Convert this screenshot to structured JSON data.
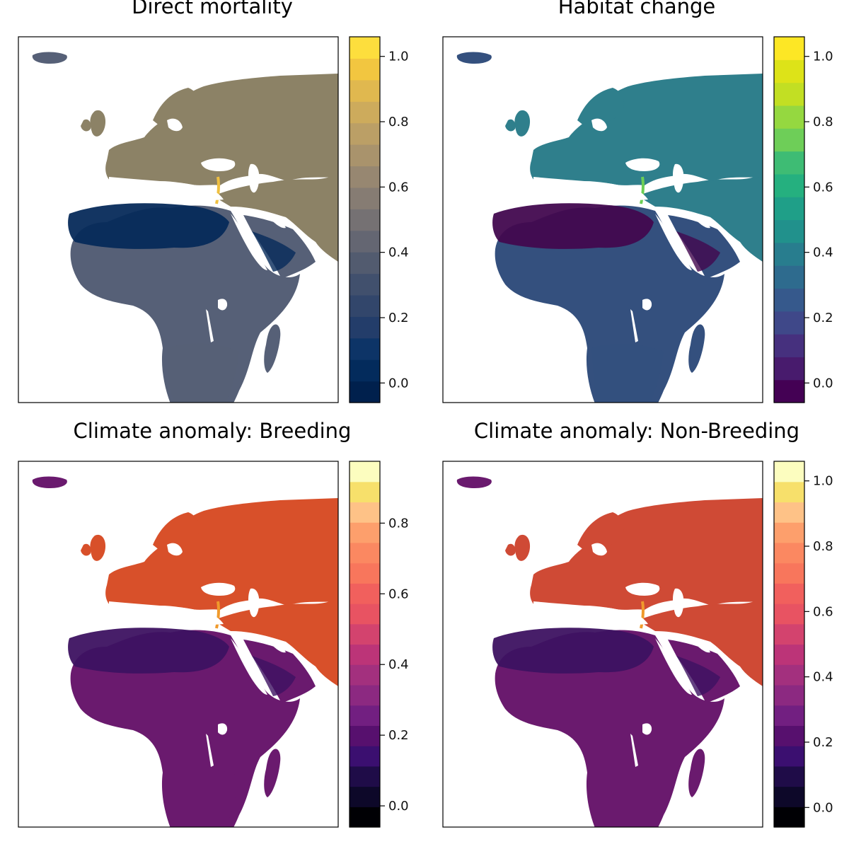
{
  "panels": [
    {
      "title": "Direct mortality",
      "palette": [
        "#00204d",
        "#032b5c",
        "#0d3467",
        "#233d6a",
        "#32466b",
        "#41506d",
        "#525b6f",
        "#646672",
        "#757173",
        "#867c73",
        "#978771",
        "#a9936c",
        "#bb9f66",
        "#cdab5c",
        "#e0b84f",
        "#f2c640",
        "#fdde3d"
      ],
      "ticks": [
        "0.0",
        "0.2",
        "0.4",
        "0.6",
        "0.8",
        "1.0"
      ],
      "colors": {
        "ocean": "#ffffff",
        "land": "#566077",
        "desert": "#062a5a",
        "north": "#8c8266",
        "nile": "#f0c040"
      }
    },
    {
      "title": "Habitat change",
      "palette": [
        "#440154",
        "#481b6d",
        "#46307e",
        "#3f4889",
        "#36598c",
        "#2e6b8e",
        "#287d8e",
        "#21918c",
        "#1f9f88",
        "#25b07f",
        "#3ebc74",
        "#6ece58",
        "#95d840",
        "#c2df23",
        "#dde318",
        "#fde725"
      ],
      "ticks": [
        "0.0",
        "0.2",
        "0.4",
        "0.6",
        "0.8",
        "1.0"
      ],
      "colors": {
        "ocean": "#ffffff",
        "land": "#34507e",
        "desert": "#42084f",
        "north": "#2f7f8c",
        "nile": "#6ccf55"
      }
    },
    {
      "title": "Climate anomaly: Breeding",
      "palette": [
        "#000004",
        "#0d0829",
        "#1f0c48",
        "#3b0f70",
        "#57106e",
        "#721f81",
        "#8c2981",
        "#a3307e",
        "#bc3478",
        "#d3436e",
        "#e85362",
        "#f1605d",
        "#f8765c",
        "#fb8861",
        "#fd9f6c",
        "#fec287",
        "#f7e06b",
        "#fcfdbf"
      ],
      "ticks": [
        "0.0",
        "0.2",
        "0.4",
        "0.6",
        "0.8"
      ],
      "colors": {
        "ocean": "#ffffff",
        "land": "#6a1a6e",
        "desert": "#3d1261",
        "north": "#d8502a",
        "nile": "#f09a2c"
      }
    },
    {
      "title": "Climate anomaly: Non-Breeding",
      "palette": [
        "#000004",
        "#0d0829",
        "#1f0c48",
        "#3b0f70",
        "#57106e",
        "#721f81",
        "#8c2981",
        "#a3307e",
        "#bc3478",
        "#d3436e",
        "#e85362",
        "#f1605d",
        "#f8765c",
        "#fb8861",
        "#fd9f6c",
        "#fec287",
        "#f7e06b",
        "#fcfdbf"
      ],
      "ticks": [
        "0.0",
        "0.2",
        "0.4",
        "0.6",
        "0.8",
        "1.0"
      ],
      "colors": {
        "ocean": "#ffffff",
        "land": "#6a1a6e",
        "desert": "#3d1261",
        "north": "#cf4a35",
        "nile": "#f09a2c"
      }
    }
  ]
}
